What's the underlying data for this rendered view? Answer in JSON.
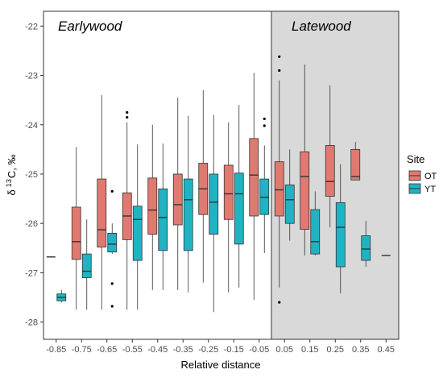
{
  "chart_data": {
    "type": "boxplot",
    "xlabel": "Relative distance",
    "ylabel_main": "δ",
    "ylabel_sup": "13",
    "ylabel_rest": "C, ‰",
    "ylim": [
      -28.35,
      -21.7
    ],
    "yticks": [
      -22,
      -23,
      -24,
      -25,
      -26,
      -27,
      -28
    ],
    "categories": [
      "-0.85",
      "-0.75",
      "-0.65",
      "-0.55",
      "-0.45",
      "-0.35",
      "-0.25",
      "-0.15",
      "-0.05",
      "0.05",
      "0.15",
      "0.25",
      "0.35",
      "0.45"
    ],
    "regions": [
      {
        "label": "Earlywood",
        "from_category": "-0.85",
        "to_category": "-0.05",
        "shaded": false
      },
      {
        "label": "Latewood",
        "from_category": "0.05",
        "to_category": "0.45",
        "shaded": true,
        "color": "#d9d9d9"
      }
    ],
    "legend": {
      "title": "Site",
      "position": "right"
    },
    "series": [
      {
        "name": "OT",
        "color": "#e07a70",
        "boxes": [
          {
            "category": "-0.85",
            "min": -26.68,
            "q1": -26.68,
            "median": -26.68,
            "q3": -26.68,
            "max": -26.68,
            "outliers": []
          },
          {
            "category": "-0.75",
            "min": -27.75,
            "q1": -26.73,
            "median": -26.37,
            "q3": -25.67,
            "max": -24.45,
            "outliers": []
          },
          {
            "category": "-0.65",
            "min": -27.75,
            "q1": -26.48,
            "median": -26.13,
            "q3": -25.1,
            "max": -23.4,
            "outliers": []
          },
          {
            "category": "-0.55",
            "min": -27.75,
            "q1": -26.33,
            "median": -25.85,
            "q3": -25.38,
            "max": -23.95,
            "outliers": [
              -23.75,
              -23.85
            ]
          },
          {
            "category": "-0.45",
            "min": -27.35,
            "q1": -26.22,
            "median": -25.73,
            "q3": -25.08,
            "max": -24.0,
            "outliers": []
          },
          {
            "category": "-0.35",
            "min": -27.35,
            "q1": -26.03,
            "median": -25.62,
            "q3": -25.0,
            "max": -23.45,
            "outliers": []
          },
          {
            "category": "-0.25",
            "min": -27.2,
            "q1": -25.82,
            "median": -25.3,
            "q3": -24.78,
            "max": -23.3,
            "outliers": []
          },
          {
            "category": "-0.15",
            "min": -27.4,
            "q1": -25.92,
            "median": -25.4,
            "q3": -24.82,
            "max": -23.95,
            "outliers": []
          },
          {
            "category": "-0.05",
            "min": -27.55,
            "q1": -25.85,
            "median": -25.02,
            "q3": -24.28,
            "max": -22.95,
            "outliers": []
          },
          {
            "category": "0.05",
            "min": -27.3,
            "q1": -25.85,
            "median": -25.32,
            "q3": -24.75,
            "max": -23.1,
            "outliers": [
              -22.62,
              -22.9,
              -27.6
            ]
          },
          {
            "category": "0.15",
            "min": -26.65,
            "q1": -26.12,
            "median": -25.05,
            "q3": -24.55,
            "max": -22.78,
            "outliers": []
          },
          {
            "category": "0.25",
            "min": -26.08,
            "q1": -25.45,
            "median": -25.15,
            "q3": -24.42,
            "max": -23.2,
            "outliers": []
          },
          {
            "category": "0.35",
            "min": -25.12,
            "q1": -25.12,
            "median": -25.05,
            "q3": -24.5,
            "max": -24.35,
            "outliers": []
          }
        ]
      },
      {
        "name": "YT",
        "color": "#1fb3c4",
        "boxes": [
          {
            "category": "-0.85",
            "min": -27.6,
            "q1": -27.57,
            "median": -27.5,
            "q3": -27.43,
            "max": -27.35,
            "outliers": []
          },
          {
            "category": "-0.75",
            "min": -27.75,
            "q1": -27.1,
            "median": -26.97,
            "q3": -26.62,
            "max": -25.92,
            "outliers": []
          },
          {
            "category": "-0.65",
            "min": -26.62,
            "q1": -26.58,
            "median": -26.42,
            "q3": -26.2,
            "max": -26.0,
            "outliers": [
              -25.35,
              -27.22,
              -27.68
            ]
          },
          {
            "category": "-0.55",
            "min": -27.75,
            "q1": -26.75,
            "median": -25.92,
            "q3": -25.65,
            "max": -24.4,
            "outliers": []
          },
          {
            "category": "-0.45",
            "min": -27.35,
            "q1": -26.55,
            "median": -25.88,
            "q3": -25.3,
            "max": -24.38,
            "outliers": []
          },
          {
            "category": "-0.35",
            "min": -27.4,
            "q1": -26.55,
            "median": -25.52,
            "q3": -25.1,
            "max": -23.82,
            "outliers": []
          },
          {
            "category": "-0.25",
            "min": -27.8,
            "q1": -26.22,
            "median": -25.57,
            "q3": -25.0,
            "max": -23.8,
            "outliers": []
          },
          {
            "category": "-0.15",
            "min": -27.3,
            "q1": -26.42,
            "median": -25.4,
            "q3": -24.98,
            "max": -23.6,
            "outliers": []
          },
          {
            "category": "-0.05",
            "min": -26.6,
            "q1": -25.82,
            "median": -25.47,
            "q3": -25.1,
            "max": -24.42,
            "outliers": [
              -23.88,
              -24.02
            ]
          },
          {
            "category": "0.05",
            "min": -26.35,
            "q1": -26.0,
            "median": -25.52,
            "q3": -25.22,
            "max": -24.5,
            "outliers": []
          },
          {
            "category": "0.15",
            "min": -26.65,
            "q1": -26.62,
            "median": -26.37,
            "q3": -25.72,
            "max": -25.35,
            "outliers": []
          },
          {
            "category": "0.25",
            "min": -27.42,
            "q1": -26.88,
            "median": -26.08,
            "q3": -25.58,
            "max": -24.8,
            "outliers": []
          },
          {
            "category": "0.35",
            "min": -26.88,
            "q1": -26.75,
            "median": -26.52,
            "q3": -26.25,
            "max": -25.95,
            "outliers": []
          },
          {
            "category": "0.45",
            "min": -26.65,
            "q1": -26.65,
            "median": -26.65,
            "q3": -26.65,
            "max": -26.65,
            "outliers": []
          }
        ]
      }
    ]
  }
}
